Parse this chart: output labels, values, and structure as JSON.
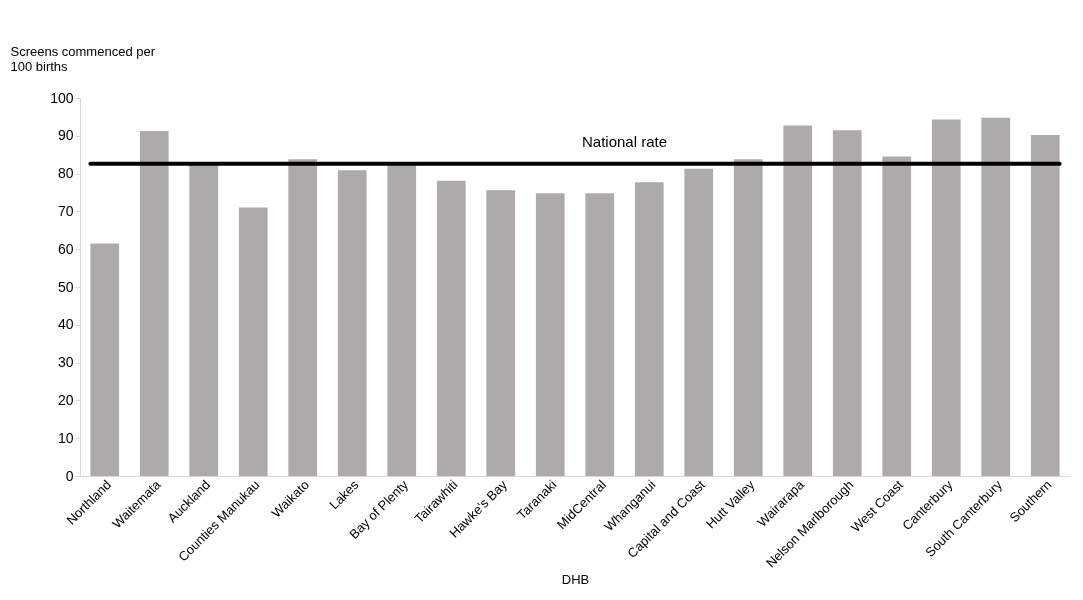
{
  "chart_data": {
    "type": "bar",
    "ylabel": "Screens commenced per 100 births",
    "xlabel": "DHB",
    "categories": [
      "Northland",
      "Waitemata",
      "Auckland",
      "Counties Manukau",
      "Waikato",
      "Lakes",
      "Bay of Plenty",
      "Tairawhiti",
      "Hawke's Bay",
      "Taranaki",
      "MidCentral",
      "Whanganui",
      "Capital and Coast",
      "Hutt Valley",
      "Wairarapa",
      "Nelson Marlborough",
      "West Coast",
      "Canterbury",
      "South Canterbury",
      "Southern"
    ],
    "values": [
      61.5,
      91.3,
      82.5,
      71.0,
      83.8,
      80.9,
      82.5,
      78.1,
      75.6,
      74.8,
      74.8,
      77.7,
      81.3,
      83.8,
      92.7,
      91.5,
      84.5,
      94.3,
      94.8,
      90.2
    ],
    "color": "#aeaaaa",
    "ylim": [
      0,
      100
    ],
    "yticks": [
      0,
      10,
      20,
      30,
      40,
      50,
      60,
      70,
      80,
      90,
      100
    ],
    "grid": false,
    "ref_lines": [
      {
        "axis": "y",
        "value": 82.6,
        "label": "National rate",
        "color": "#000000"
      }
    ]
  }
}
